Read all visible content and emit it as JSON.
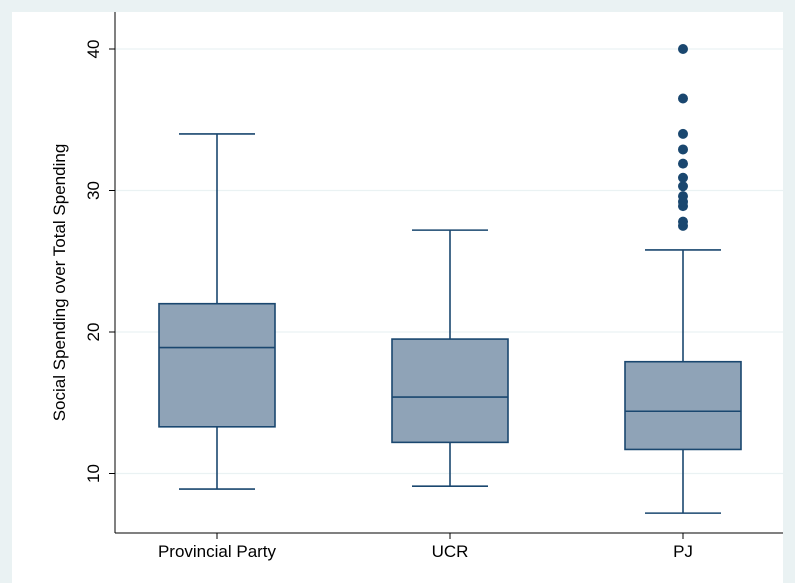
{
  "chart_data": {
    "type": "box",
    "title": "",
    "xlabel": "",
    "ylabel": "Social Spending over Total Spending",
    "ylim": [
      6.2,
      42.5
    ],
    "yticks": [
      10,
      20,
      30,
      40
    ],
    "ytick_labels": [
      "10",
      "20",
      "30",
      "40"
    ],
    "grid": true,
    "categories": [
      "Provincial Party",
      "UCR",
      "PJ"
    ],
    "boxes": [
      {
        "category": "Provincial Party",
        "whisker_low": 8.9,
        "q1": 13.3,
        "median": 18.9,
        "q3": 22.0,
        "whisker_high": 34.0,
        "outliers": []
      },
      {
        "category": "UCR",
        "whisker_low": 9.1,
        "q1": 12.2,
        "median": 15.4,
        "q3": 19.5,
        "whisker_high": 27.2,
        "outliers": []
      },
      {
        "category": "PJ",
        "whisker_low": 7.2,
        "q1": 11.7,
        "median": 14.4,
        "q3": 17.9,
        "whisker_high": 25.8,
        "outliers": [
          27.5,
          27.8,
          28.9,
          29.2,
          29.6,
          30.3,
          30.9,
          31.9,
          32.9,
          34.0,
          36.5,
          40.0
        ]
      }
    ],
    "colors": {
      "box_fill": "#8fa3b7",
      "box_stroke": "#1a476f",
      "outlier": "#1a476f",
      "grid": "#eaf2f3",
      "background": "#eaf2f3",
      "plot_background": "#ffffff"
    }
  }
}
